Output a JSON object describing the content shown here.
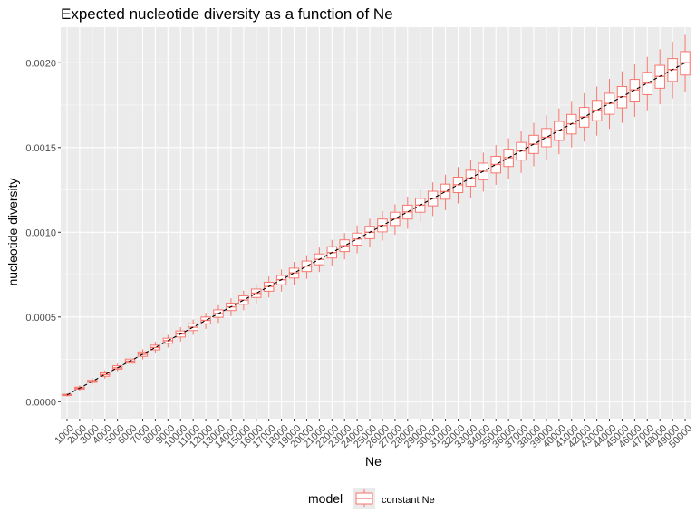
{
  "chart_data": {
    "type": "boxplot",
    "title": "Expected nucleotide diversity as a function of Ne",
    "xlabel": "Ne",
    "ylabel": "nucleotide diversity",
    "categories": [
      "1000",
      "2000",
      "3000",
      "4000",
      "5000",
      "6000",
      "7000",
      "8000",
      "9000",
      "10000",
      "11000",
      "12000",
      "13000",
      "14000",
      "15000",
      "16000",
      "17000",
      "18000",
      "19000",
      "20000",
      "21000",
      "22000",
      "23000",
      "24000",
      "25000",
      "26000",
      "27000",
      "28000",
      "29000",
      "30000",
      "31000",
      "32000",
      "33000",
      "34000",
      "35000",
      "36000",
      "37000",
      "38000",
      "39000",
      "40000",
      "41000",
      "42000",
      "43000",
      "44000",
      "45000",
      "46000",
      "47000",
      "48000",
      "49000",
      "50000"
    ],
    "ylim": [
      -0.0001,
      0.00221
    ],
    "yticks": [
      0,
      0.0005,
      0.001,
      0.0015,
      0.002
    ],
    "ytick_labels": [
      "0.0000",
      "0.0005",
      "0.0010",
      "0.0015",
      "0.0020"
    ],
    "expected_line": {
      "style": "dashed",
      "color": "#000000",
      "from": [
        1000,
        4e-05
      ],
      "to": [
        50000,
        0.002
      ]
    },
    "series": [
      {
        "name": "constant Ne",
        "color": "#F8766D",
        "boxes": [
          {
            "q1": 3.6e-05,
            "median": 4e-05,
            "q3": 4.4e-05,
            "low": 3e-05,
            "high": 5e-05
          },
          {
            "q1": 7.4e-05,
            "median": 8e-05,
            "q3": 8.6e-05,
            "low": 6.4e-05,
            "high": 9.6e-05
          },
          {
            "q1": 0.000114,
            "median": 0.00012,
            "q3": 0.000126,
            "low": 0.0001,
            "high": 0.00014
          },
          {
            "q1": 0.00015,
            "median": 0.00016,
            "q3": 0.00017,
            "low": 0.000135,
            "high": 0.000185
          },
          {
            "q1": 0.000192,
            "median": 0.0002,
            "q3": 0.000212,
            "low": 0.00018,
            "high": 0.000225
          },
          {
            "q1": 0.000228,
            "median": 0.00024,
            "q3": 0.000252,
            "low": 0.00021,
            "high": 0.00027
          },
          {
            "q1": 0.000268,
            "median": 0.00028,
            "q3": 0.000294,
            "low": 0.00025,
            "high": 0.00031
          },
          {
            "q1": 0.000306,
            "median": 0.00032,
            "q3": 0.000334,
            "low": 0.000285,
            "high": 0.000355
          },
          {
            "q1": 0.000345,
            "median": 0.00036,
            "q3": 0.000375,
            "low": 0.00032,
            "high": 0.000395
          },
          {
            "q1": 0.000382,
            "median": 0.0004,
            "q3": 0.000418,
            "low": 0.000355,
            "high": 0.00044
          },
          {
            "q1": 0.00042,
            "median": 0.00044,
            "q3": 0.00046,
            "low": 0.000395,
            "high": 0.000485
          },
          {
            "q1": 0.00046,
            "median": 0.00048,
            "q3": 0.0005,
            "low": 0.00043,
            "high": 0.000525
          },
          {
            "q1": 0.000498,
            "median": 0.00052,
            "q3": 0.000542,
            "low": 0.000465,
            "high": 0.00057
          },
          {
            "q1": 0.000538,
            "median": 0.00056,
            "q3": 0.000582,
            "low": 0.000505,
            "high": 0.00061
          },
          {
            "q1": 0.000575,
            "median": 0.0006,
            "q3": 0.000625,
            "low": 0.00054,
            "high": 0.000655
          },
          {
            "q1": 0.000615,
            "median": 0.00064,
            "q3": 0.000665,
            "low": 0.00058,
            "high": 0.000695
          },
          {
            "q1": 0.000652,
            "median": 0.00068,
            "q3": 0.000705,
            "low": 0.000615,
            "high": 0.00074
          },
          {
            "q1": 0.00069,
            "median": 0.00072,
            "q3": 0.000745,
            "low": 0.00065,
            "high": 0.00078
          },
          {
            "q1": 0.00073,
            "median": 0.00076,
            "q3": 0.000788,
            "low": 0.00069,
            "high": 0.000825
          },
          {
            "q1": 0.000768,
            "median": 0.0008,
            "q3": 0.00083,
            "low": 0.000725,
            "high": 0.000865
          },
          {
            "q1": 0.000808,
            "median": 0.00084,
            "q3": 0.000872,
            "low": 0.000765,
            "high": 0.00091
          },
          {
            "q1": 0.000848,
            "median": 0.00088,
            "q3": 0.000915,
            "low": 0.0008,
            "high": 0.000955
          },
          {
            "q1": 0.000886,
            "median": 0.00092,
            "q3": 0.000955,
            "low": 0.00084,
            "high": 0.000995
          },
          {
            "q1": 0.000924,
            "median": 0.00096,
            "q3": 0.000995,
            "low": 0.000875,
            "high": 0.00104
          },
          {
            "q1": 0.000962,
            "median": 0.001,
            "q3": 0.001035,
            "low": 0.00091,
            "high": 0.00108
          },
          {
            "q1": 0.001002,
            "median": 0.00104,
            "q3": 0.001078,
            "low": 0.00095,
            "high": 0.001125
          },
          {
            "q1": 0.00104,
            "median": 0.00108,
            "q3": 0.001118,
            "low": 0.000985,
            "high": 0.001165
          },
          {
            "q1": 0.001078,
            "median": 0.00112,
            "q3": 0.00116,
            "low": 0.00102,
            "high": 0.00121
          },
          {
            "q1": 0.001118,
            "median": 0.00116,
            "q3": 0.0012,
            "low": 0.00106,
            "high": 0.001255
          },
          {
            "q1": 0.001156,
            "median": 0.0012,
            "q3": 0.001242,
            "low": 0.001095,
            "high": 0.001295
          },
          {
            "q1": 0.001195,
            "median": 0.00124,
            "q3": 0.001284,
            "low": 0.00113,
            "high": 0.00134
          },
          {
            "q1": 0.001234,
            "median": 0.00128,
            "q3": 0.001325,
            "low": 0.00117,
            "high": 0.001385
          },
          {
            "q1": 0.001272,
            "median": 0.00132,
            "q3": 0.001366,
            "low": 0.001205,
            "high": 0.001425
          },
          {
            "q1": 0.00131,
            "median": 0.00136,
            "q3": 0.001408,
            "low": 0.00124,
            "high": 0.00147
          },
          {
            "q1": 0.00135,
            "median": 0.0014,
            "q3": 0.001448,
            "low": 0.00128,
            "high": 0.001515
          },
          {
            "q1": 0.001388,
            "median": 0.00144,
            "q3": 0.00149,
            "low": 0.001315,
            "high": 0.001555
          },
          {
            "q1": 0.001426,
            "median": 0.00148,
            "q3": 0.00153,
            "low": 0.00135,
            "high": 0.0016
          },
          {
            "q1": 0.001465,
            "median": 0.00152,
            "q3": 0.001572,
            "low": 0.00139,
            "high": 0.001645
          },
          {
            "q1": 0.001504,
            "median": 0.00156,
            "q3": 0.001612,
            "low": 0.001425,
            "high": 0.00169
          },
          {
            "q1": 0.001542,
            "median": 0.0016,
            "q3": 0.001654,
            "low": 0.00146,
            "high": 0.00173
          },
          {
            "q1": 0.00158,
            "median": 0.00164,
            "q3": 0.001695,
            "low": 0.0015,
            "high": 0.001775
          },
          {
            "q1": 0.00162,
            "median": 0.00168,
            "q3": 0.001736,
            "low": 0.001535,
            "high": 0.00182
          },
          {
            "q1": 0.001658,
            "median": 0.00172,
            "q3": 0.001778,
            "low": 0.00157,
            "high": 0.00186
          },
          {
            "q1": 0.001696,
            "median": 0.00176,
            "q3": 0.00182,
            "low": 0.00161,
            "high": 0.001905
          },
          {
            "q1": 0.001734,
            "median": 0.0018,
            "q3": 0.00186,
            "low": 0.001645,
            "high": 0.00195
          },
          {
            "q1": 0.001774,
            "median": 0.00184,
            "q3": 0.001902,
            "low": 0.00168,
            "high": 0.00199
          },
          {
            "q1": 0.001812,
            "median": 0.00188,
            "q3": 0.001944,
            "low": 0.00172,
            "high": 0.002035
          },
          {
            "q1": 0.00185,
            "median": 0.00192,
            "q3": 0.001985,
            "low": 0.001755,
            "high": 0.00208
          },
          {
            "q1": 0.00189,
            "median": 0.00196,
            "q3": 0.002025,
            "low": 0.00179,
            "high": 0.002125
          },
          {
            "q1": 0.001928,
            "median": 0.002,
            "q3": 0.002066,
            "low": 0.00183,
            "high": 0.002165
          }
        ]
      }
    ],
    "grid": true,
    "legend": {
      "position": "bottom",
      "title": "model",
      "entries": [
        "constant Ne"
      ]
    }
  },
  "style": {
    "panel_bg": "#EBEBEB",
    "grid_color": "#FFFFFF",
    "box_color": "#F8766D"
  }
}
